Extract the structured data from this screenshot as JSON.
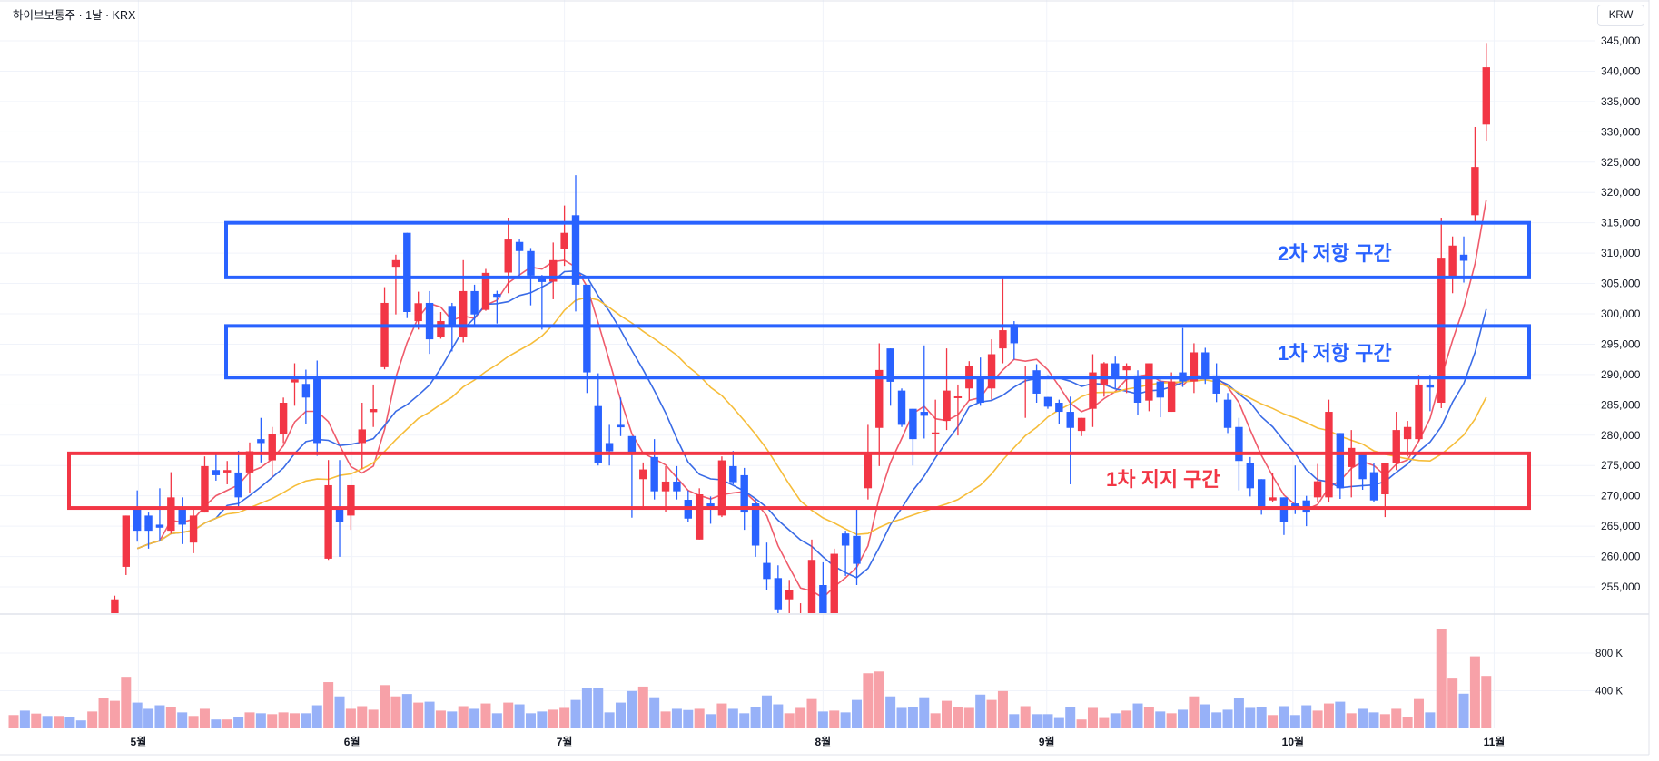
{
  "header": {
    "title": "하이브보통주 · 1날 · KRX",
    "currency": "KRW"
  },
  "colors": {
    "up": "#f23645",
    "down": "#2962ff",
    "volume_up": "#f7a1a8",
    "volume_down": "#97b1f8",
    "ma_fast": "#ef5b6b",
    "ma_mid": "#3a6be6",
    "ma_slow": "#f6bd3a",
    "grid": "#f0f3fa",
    "border": "#e0e3eb"
  },
  "chart_data": {
    "type": "candlestick",
    "title": "",
    "y_range": [
      250700,
      351700
    ],
    "y_ticks": [
      255000,
      260000,
      265000,
      270000,
      275000,
      280000,
      285000,
      290000,
      295000,
      300000,
      305000,
      310000,
      315000,
      320000,
      325000,
      330000,
      335000,
      340000,
      345000
    ],
    "y_tick_labels": [
      "255,000",
      "260,000",
      "265,000",
      "270,000",
      "275,000",
      "280,000",
      "285,000",
      "290,000",
      "295,000",
      "300,000",
      "305,000",
      "310,000",
      "315,000",
      "320,000",
      "325,000",
      "330,000",
      "335,000",
      "340,000",
      "345,000"
    ],
    "x_ticks": [
      {
        "label": "5월",
        "bar": 11.1
      },
      {
        "label": "6월",
        "bar": 30.1
      },
      {
        "label": "7월",
        "bar": 49
      },
      {
        "label": "8월",
        "bar": 72
      },
      {
        "label": "9월",
        "bar": 91.9
      },
      {
        "label": "10월",
        "bar": 113.8
      },
      {
        "label": "11월",
        "bar": 131.7
      }
    ],
    "candle_fields": [
      "open",
      "high",
      "low",
      "close"
    ],
    "candles": [
      null,
      null,
      null,
      null,
      null,
      null,
      null,
      null,
      null,
      [
        249500,
        253550,
        248000,
        252950
      ],
      [
        258300,
        266750,
        256950,
        266750
      ],
      [
        268250,
        270900,
        262450,
        264250
      ],
      [
        266750,
        267250,
        261300,
        264250
      ],
      [
        265250,
        271250,
        262550,
        264750
      ],
      [
        264250,
        273900,
        263750,
        269750
      ],
      [
        267850,
        269750,
        262050,
        265250
      ],
      [
        262300,
        267750,
        260550,
        266750
      ],
      [
        267250,
        276500,
        267250,
        274900
      ],
      [
        274250,
        277250,
        272500,
        273400
      ],
      [
        273850,
        275750,
        271900,
        274250
      ],
      [
        273850,
        277400,
        268000,
        269750
      ],
      [
        273850,
        278800,
        270500,
        277350
      ],
      [
        279350,
        282850,
        275500,
        278700
      ],
      [
        275850,
        281350,
        273100,
        280200
      ],
      [
        280200,
        286200,
        278700,
        285350
      ],
      [
        288700,
        291850,
        284850,
        289200
      ],
      [
        288450,
        290800,
        281850,
        286200
      ],
      [
        289450,
        292300,
        276600,
        278700
      ],
      [
        259650,
        275900,
        259450,
        271750
      ],
      [
        267850,
        275900,
        259950,
        265750
      ],
      [
        266750,
        271750,
        264400,
        271750
      ],
      [
        278700,
        285350,
        274500,
        280950
      ],
      [
        283800,
        288350,
        281350,
        284300
      ],
      [
        291200,
        304400,
        290850,
        301800
      ],
      [
        307750,
        309750,
        299900,
        308850
      ],
      [
        313350,
        313350,
        299300,
        300300
      ],
      [
        298800,
        303650,
        297400,
        301750
      ],
      [
        301800,
        303750,
        293400,
        295800
      ],
      [
        296150,
        300300,
        295900,
        298800
      ],
      [
        301300,
        301800,
        293800,
        298000
      ],
      [
        296250,
        308850,
        295300,
        303750
      ],
      [
        303750,
        304800,
        298150,
        299900
      ],
      [
        300650,
        307400,
        300500,
        306750
      ],
      [
        303300,
        303800,
        298400,
        302800
      ],
      [
        306800,
        315850,
        303400,
        312250
      ],
      [
        311850,
        312250,
        306300,
        310350
      ],
      [
        310350,
        310850,
        301400,
        306300
      ],
      [
        306250,
        306400,
        297400,
        305250
      ],
      [
        305300,
        311750,
        302400,
        308850
      ],
      [
        310700,
        317850,
        307900,
        313350
      ],
      [
        316250,
        322850,
        300400,
        304800
      ],
      [
        304800,
        304800,
        286950,
        290350
      ],
      [
        284800,
        290200,
        275000,
        275350
      ],
      [
        278700,
        281700,
        275000,
        277350
      ],
      [
        281700,
        286200,
        279850,
        281300
      ],
      [
        279850,
        279850,
        266400,
        276750
      ],
      [
        272750,
        275500,
        268250,
        274350
      ],
      [
        276400,
        279350,
        269400,
        270750
      ],
      [
        270750,
        274900,
        267400,
        272350
      ],
      [
        272350,
        274900,
        269400,
        270750
      ],
      [
        269350,
        270900,
        265750,
        266250
      ],
      [
        262800,
        271250,
        262800,
        270250
      ],
      [
        268750,
        269900,
        265400,
        267850
      ],
      [
        266750,
        276500,
        266500,
        275850
      ],
      [
        274900,
        277400,
        271900,
        272250
      ],
      [
        273400,
        274600,
        264400,
        267250
      ],
      [
        268750,
        269500,
        259950,
        261800
      ],
      [
        258950,
        262300,
        254550,
        256300
      ],
      [
        256450,
        258550,
        250550,
        251300
      ],
      [
        252950,
        256150,
        250300,
        254450
      ],
      [
        249300,
        252300,
        248000,
        250200
      ],
      [
        249500,
        262800,
        248000,
        259450
      ],
      [
        255300,
        259050,
        249500,
        250550
      ],
      [
        249500,
        261300,
        249000,
        260450
      ],
      [
        263800,
        264250,
        256800,
        261800
      ],
      [
        263400,
        267900,
        255300,
        258800
      ],
      [
        271250,
        281700,
        269400,
        277250
      ],
      [
        281200,
        295150,
        274900,
        290750
      ],
      [
        294300,
        294300,
        284850,
        288800
      ],
      [
        287350,
        287700,
        281350,
        281700
      ],
      [
        284350,
        284350,
        275000,
        279350
      ],
      [
        283850,
        294800,
        279450,
        283200
      ],
      [
        280350,
        285850,
        277000,
        280450
      ],
      [
        282350,
        294300,
        280850,
        287350
      ],
      [
        286100,
        288350,
        279950,
        286400
      ],
      [
        287700,
        292200,
        285700,
        291350
      ],
      [
        289550,
        292800,
        284850,
        285350
      ],
      [
        287700,
        295800,
        285850,
        293350
      ],
      [
        294300,
        305900,
        291850,
        297300
      ],
      [
        298300,
        298800,
        292450,
        295150
      ],
      [
        289600,
        291350,
        282850,
        289800
      ],
      [
        290700,
        291700,
        285350,
        286850
      ],
      [
        286300,
        286300,
        284350,
        284700
      ],
      [
        285350,
        285850,
        281850,
        283850
      ],
      [
        283850,
        286350,
        271900,
        281200
      ],
      [
        280700,
        282850,
        279850,
        282850
      ],
      [
        284350,
        293350,
        281350,
        290350
      ],
      [
        288350,
        292050,
        286350,
        291850
      ],
      [
        291850,
        292950,
        287700,
        289700
      ],
      [
        290700,
        291850,
        286950,
        291350
      ],
      [
        289850,
        290700,
        283350,
        285350
      ],
      [
        285700,
        291850,
        283950,
        291850
      ],
      [
        288850,
        289200,
        282950,
        286200
      ],
      [
        283850,
        290350,
        283850,
        288850
      ],
      [
        290350,
        297650,
        287950,
        288850
      ],
      [
        288850,
        295150,
        286950,
        293650
      ],
      [
        293650,
        294400,
        288450,
        289350
      ],
      [
        289850,
        291850,
        285450,
        286850
      ],
      [
        285850,
        286950,
        280350,
        281200
      ],
      [
        281350,
        282850,
        270900,
        275750
      ],
      [
        275400,
        276400,
        269900,
        271250
      ],
      [
        272750,
        272750,
        266900,
        268250
      ],
      [
        269250,
        273750,
        268900,
        269750
      ],
      [
        269750,
        269750,
        263550,
        265750
      ],
      [
        268750,
        275000,
        267000,
        267750
      ],
      [
        269250,
        270000,
        265000,
        267250
      ],
      [
        269750,
        275250,
        269000,
        272400
      ],
      [
        269750,
        285850,
        268900,
        283850
      ],
      [
        280350,
        280350,
        269500,
        271250
      ],
      [
        274750,
        280850,
        269750,
        277900
      ],
      [
        276900,
        277250,
        271000,
        272750
      ],
      [
        273900,
        275400,
        269000,
        269250
      ],
      [
        270250,
        275400,
        266500,
        275400
      ],
      [
        275400,
        283850,
        274250,
        280850
      ],
      [
        279350,
        282350,
        276500,
        281350
      ],
      [
        279350,
        289950,
        278950,
        288350
      ],
      [
        288350,
        289950,
        283950,
        287850
      ],
      [
        285350,
        315850,
        284450,
        309250
      ],
      [
        305900,
        312750,
        303400,
        311250
      ],
      [
        309750,
        312750,
        305150,
        308750
      ],
      [
        316250,
        330800,
        314850,
        324200
      ],
      [
        331200,
        344650,
        328400,
        340650
      ]
    ],
    "volume": [
      142000,
      189000,
      157500,
      132300,
      132300,
      119700,
      85000,
      179600,
      321300,
      293000,
      548100,
      274000,
      207900,
      245700,
      226800,
      170100,
      132300,
      207900,
      94500,
      94500,
      119700,
      170100,
      160700,
      151200,
      170100,
      160700,
      160700,
      245700,
      491400,
      340200,
      207900,
      236300,
      198500,
      459900,
      340200,
      365400,
      274000,
      283500,
      189000,
      179600,
      236300,
      207900,
      264600,
      160700,
      274000,
      255200,
      160700,
      179600,
      198500,
      217400,
      302400,
      425300,
      425300,
      170100,
      274000,
      396900,
      444200,
      330800,
      179600,
      207900,
      195300,
      207900,
      151200,
      264600,
      207900,
      160700,
      226800,
      349700,
      255200,
      160700,
      217400,
      311900,
      179600,
      189000,
      170100,
      302400,
      585900,
      604800,
      340200,
      217400,
      226800,
      330800,
      160700,
      293000,
      226800,
      217400,
      359100,
      302400,
      396900,
      151200,
      236300,
      151200,
      151200,
      110300,
      226800,
      94500,
      217400,
      110300,
      160700,
      189000,
      264600,
      226800,
      179600,
      160700,
      198500,
      340200,
      255200,
      170100,
      198500,
      321300,
      217400,
      226800,
      141800,
      236300,
      141800,
      245700,
      189000,
      264600,
      283500,
      160700,
      207900,
      170100,
      151200,
      207900,
      122900,
      311900,
      170100,
      1058400,
      529200,
      368600,
      765500,
      557600
    ],
    "volume_up": [
      1,
      0,
      1,
      0,
      1,
      0,
      0,
      1,
      1,
      1,
      1,
      0,
      0,
      0,
      1,
      0,
      1,
      1,
      0,
      1,
      0,
      1,
      0,
      1,
      1,
      1,
      0,
      0,
      1,
      0,
      1,
      1,
      1,
      1,
      1,
      0,
      1,
      0,
      1,
      0,
      1,
      0,
      1,
      0,
      1,
      0,
      0,
      0,
      1,
      1,
      0,
      0,
      0,
      0,
      0,
      0,
      1,
      0,
      1,
      0,
      0,
      1,
      0,
      1,
      0,
      0,
      0,
      0,
      0,
      1,
      1,
      1,
      0,
      1,
      0,
      0,
      1,
      1,
      0,
      0,
      0,
      0,
      1,
      1,
      1,
      1,
      0,
      1,
      1,
      0,
      1,
      0,
      0,
      0,
      0,
      1,
      1,
      1,
      0,
      1,
      0,
      1,
      0,
      1,
      0,
      1,
      0,
      0,
      0,
      0,
      0,
      0,
      1,
      0,
      0,
      0,
      1,
      1,
      0,
      1,
      0,
      0,
      1,
      1,
      1,
      1,
      0,
      1,
      1,
      0,
      1,
      1
    ],
    "volume_ticks": [
      400000,
      800000
    ],
    "volume_tick_labels": [
      "400 K",
      "800 K"
    ],
    "moving_averages": [
      {
        "color_key": "ma_fast"
      },
      {
        "color_key": "ma_mid"
      },
      {
        "color_key": "ma_slow"
      }
    ],
    "zones": [
      {
        "label": "2차 저항 구간",
        "low": 306000,
        "high": 315000,
        "color": "#2962ff"
      },
      {
        "label": "1차 저항 구간",
        "low": 289500,
        "high": 298000,
        "color": "#2962ff"
      },
      {
        "label": "1차 지지 구간",
        "low": 268000,
        "high": 277000,
        "color": "#f23645"
      }
    ]
  }
}
